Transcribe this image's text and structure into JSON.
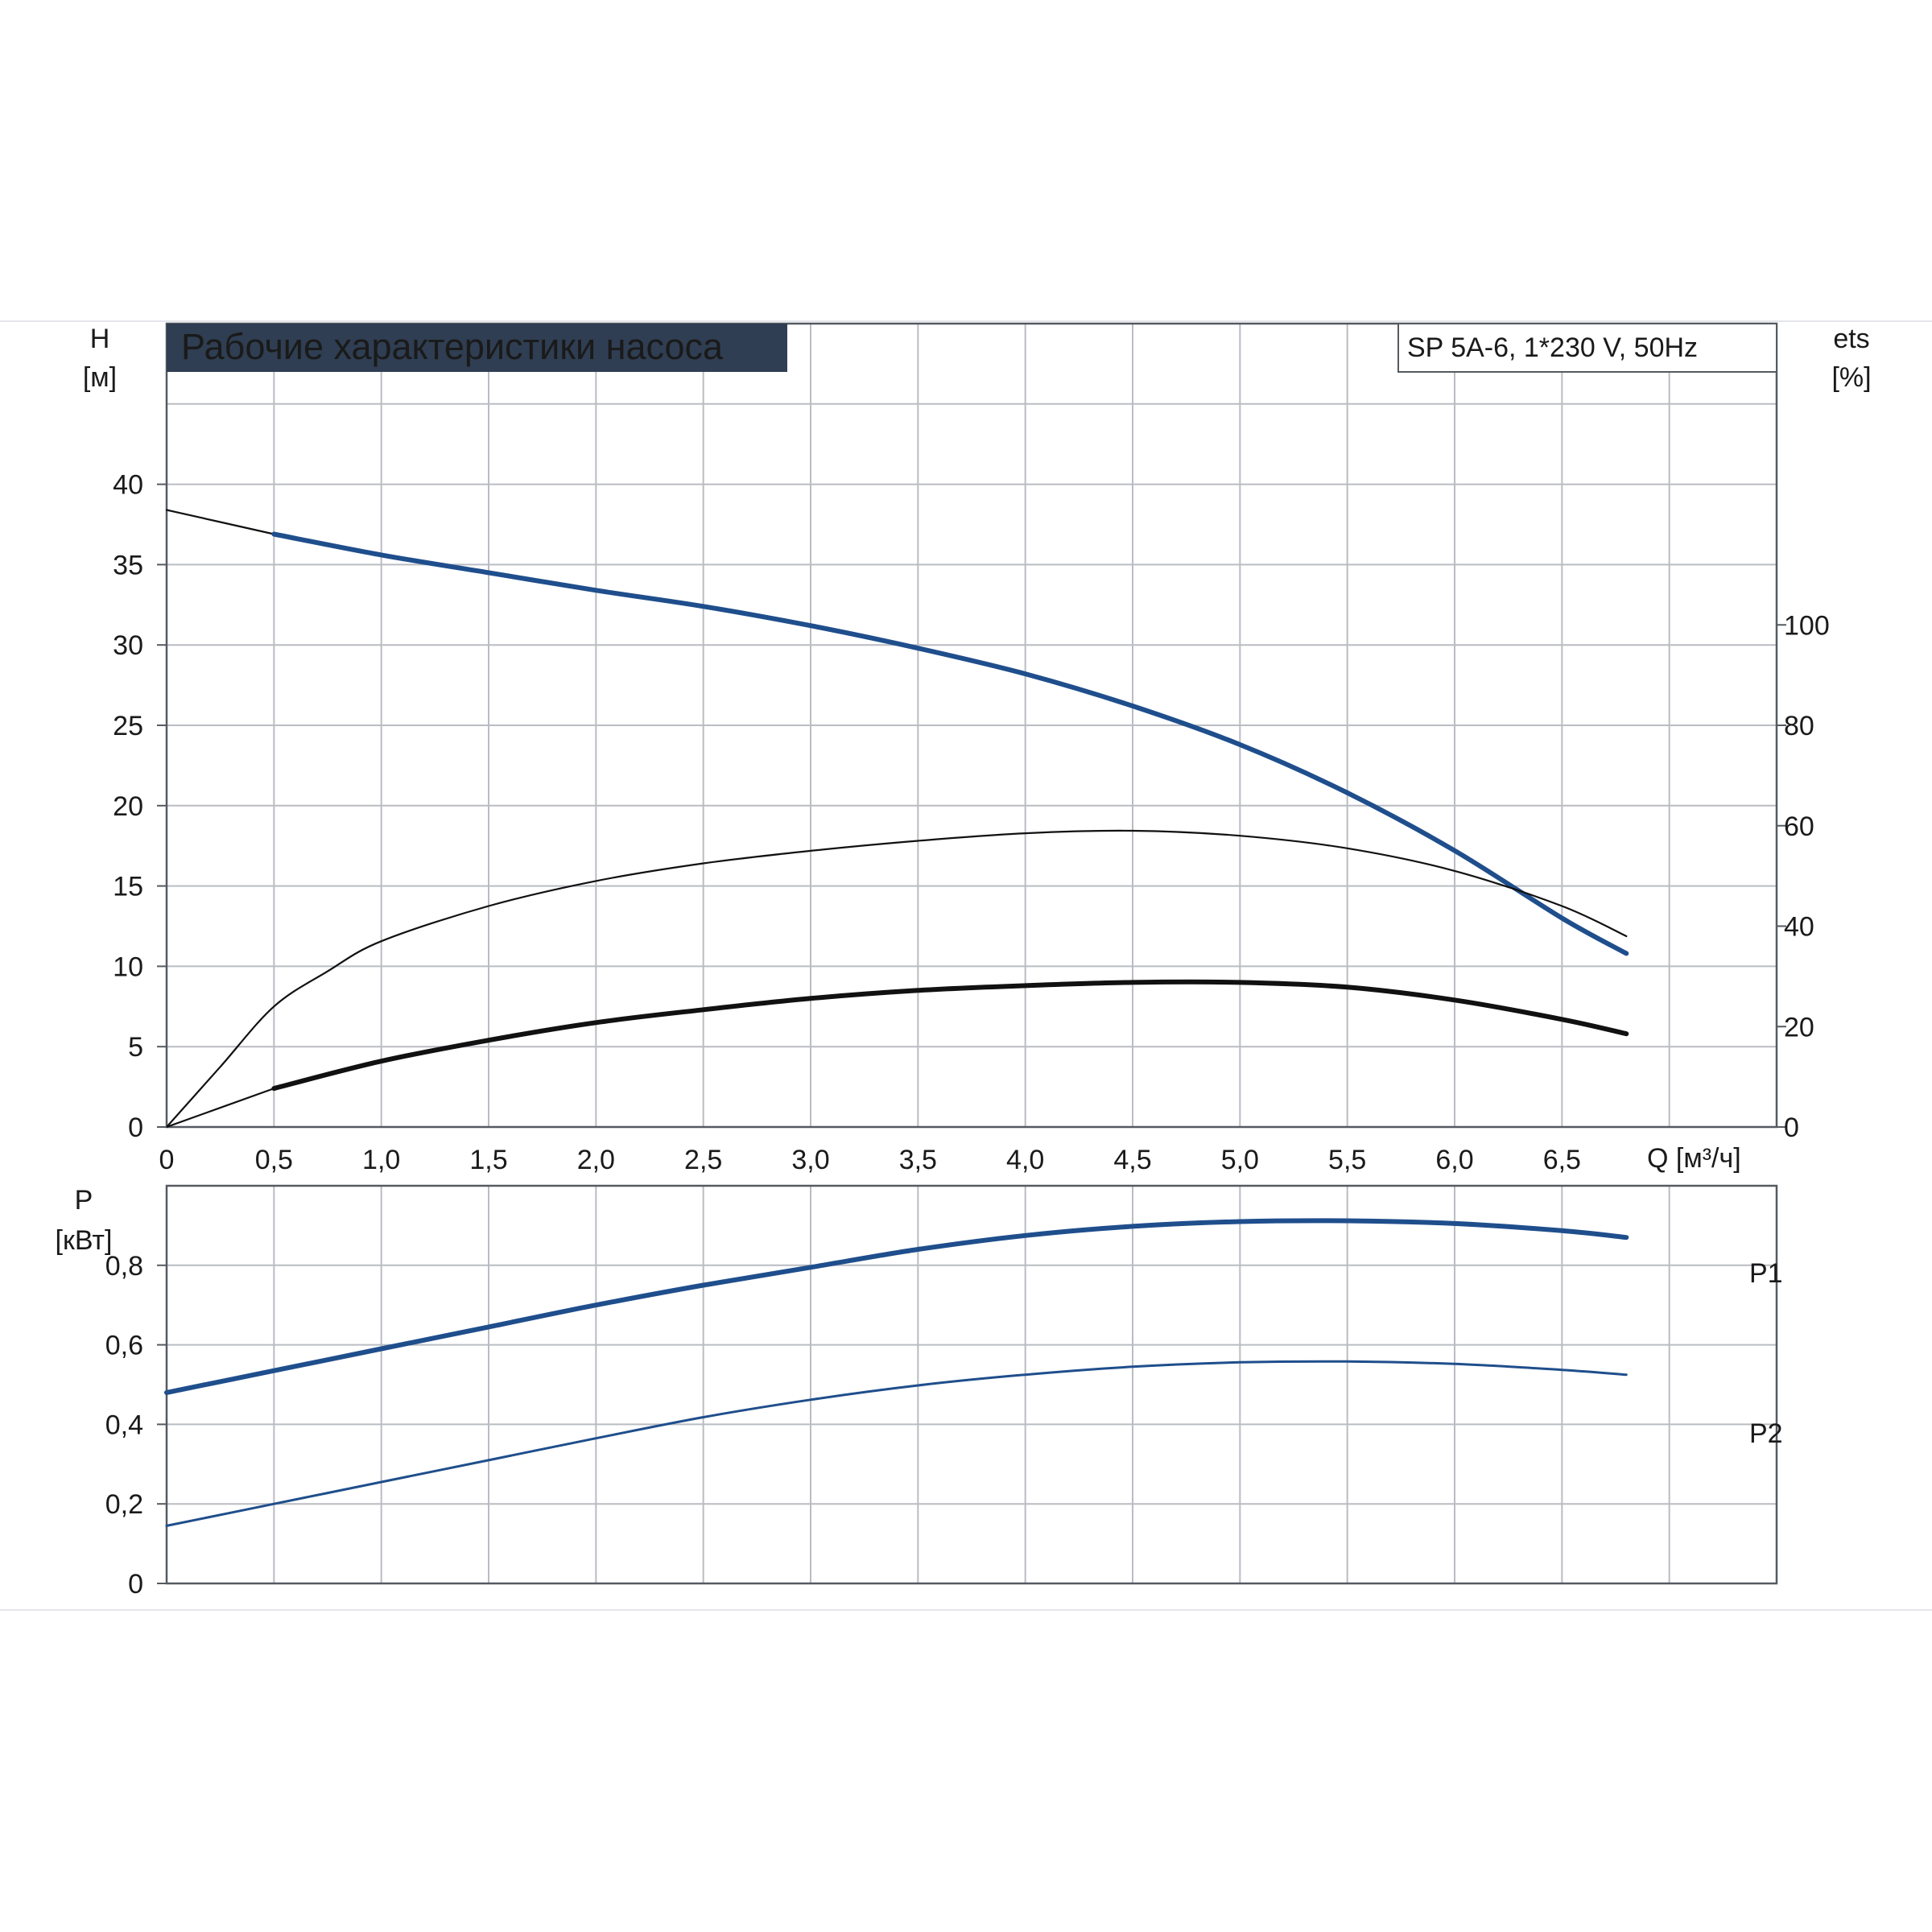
{
  "colors": {
    "blue_curve": "#1f4e8c",
    "black_curve": "#111111",
    "grid": "#b9bcc2",
    "title_bg": "#2f3e52",
    "title_fg": "#ffffff",
    "label_blue": "#1f4e8c"
  },
  "header": {
    "title": "Рабочие характеристики насоса",
    "model": "SP 5A-6, 1*230 V, 50Hz"
  },
  "chart_data": [
    {
      "type": "line",
      "title": "Рабочие характеристики насоса",
      "subtitle": "SP 5A-6, 1*230 V, 50Hz",
      "xlabel": "Q [м³/ч]",
      "ylabel_left": [
        "H",
        "[м]"
      ],
      "ylabel_right": [
        "ets",
        "[%]"
      ],
      "xlim": [
        0,
        7.5
      ],
      "ylim_left": [
        0,
        50
      ],
      "ylim_right": [
        0,
        160
      ],
      "x_ticks": [
        "0",
        "0,5",
        "1,0",
        "1,5",
        "2,0",
        "2,5",
        "3,0",
        "3,5",
        "4,0",
        "4,5",
        "5,0",
        "5,5",
        "6,0",
        "6,5"
      ],
      "y_ticks_left": [
        "0",
        "5",
        "10",
        "15",
        "20",
        "25",
        "30",
        "35",
        "40"
      ],
      "y_ticks_right": [
        "0",
        "20",
        "40",
        "60",
        "80",
        "100"
      ],
      "grid": true,
      "series": [
        {
          "axis": "left",
          "style": "thin",
          "x": [
            0,
            0.5
          ],
          "y": [
            38.4,
            36.9
          ]
        },
        {
          "axis": "left",
          "style": "bold-blue",
          "x": [
            0.5,
            1.0,
            1.5,
            2.0,
            2.5,
            3.0,
            3.5,
            4.0,
            4.5,
            5.0,
            5.5,
            6.0,
            6.5,
            6.8
          ],
          "y": [
            36.9,
            35.6,
            34.5,
            33.4,
            32.4,
            31.2,
            29.8,
            28.2,
            26.2,
            23.8,
            20.8,
            17.2,
            13.0,
            10.8
          ]
        },
        {
          "axis": "right",
          "style": "thin",
          "x": [
            0,
            0.25,
            0.5,
            0.75,
            1.0,
            1.5,
            2.0,
            2.5,
            3.0,
            3.5,
            4.0,
            4.5,
            5.0,
            5.5,
            6.0,
            6.5,
            6.8
          ],
          "y": [
            0,
            12,
            24,
            31,
            37,
            44,
            49,
            52.5,
            55,
            57,
            58.5,
            59,
            58,
            55.5,
            51,
            44,
            38
          ]
        },
        {
          "axis": "left",
          "style": "thin",
          "x": [
            0,
            0.5
          ],
          "y": [
            0,
            2.4
          ]
        },
        {
          "axis": "left",
          "style": "bold-black",
          "x": [
            0.5,
            1.0,
            1.5,
            2.0,
            2.5,
            3.0,
            3.5,
            4.0,
            4.5,
            5.0,
            5.5,
            6.0,
            6.5,
            6.8
          ],
          "y": [
            2.4,
            4.1,
            5.4,
            6.5,
            7.3,
            8.0,
            8.5,
            8.8,
            9.0,
            9.0,
            8.7,
            7.9,
            6.7,
            5.8
          ]
        }
      ]
    },
    {
      "type": "line",
      "ylabel": [
        "P",
        "[кВт]"
      ],
      "xlim": [
        0,
        7.5
      ],
      "ylim": [
        0,
        1.0
      ],
      "y_ticks": [
        "0",
        "0,2",
        "0,4",
        "0,6",
        "0,8"
      ],
      "grid": true,
      "series": [
        {
          "name": "P1",
          "style": "bold-blue",
          "x": [
            0,
            0.5,
            1.0,
            1.5,
            2.0,
            2.5,
            3.0,
            3.5,
            4.0,
            4.5,
            5.0,
            5.5,
            6.0,
            6.5,
            6.8
          ],
          "y": [
            0.48,
            0.535,
            0.59,
            0.645,
            0.7,
            0.75,
            0.795,
            0.84,
            0.875,
            0.898,
            0.91,
            0.912,
            0.905,
            0.887,
            0.87
          ]
        },
        {
          "name": "P2",
          "style": "thin-blue",
          "x": [
            0,
            0.5,
            1.0,
            1.5,
            2.0,
            2.5,
            3.0,
            3.5,
            4.0,
            4.5,
            5.0,
            5.5,
            6.0,
            6.5,
            6.8
          ],
          "y": [
            0.145,
            0.2,
            0.255,
            0.31,
            0.365,
            0.418,
            0.462,
            0.498,
            0.525,
            0.545,
            0.556,
            0.558,
            0.552,
            0.537,
            0.525
          ]
        }
      ]
    }
  ]
}
